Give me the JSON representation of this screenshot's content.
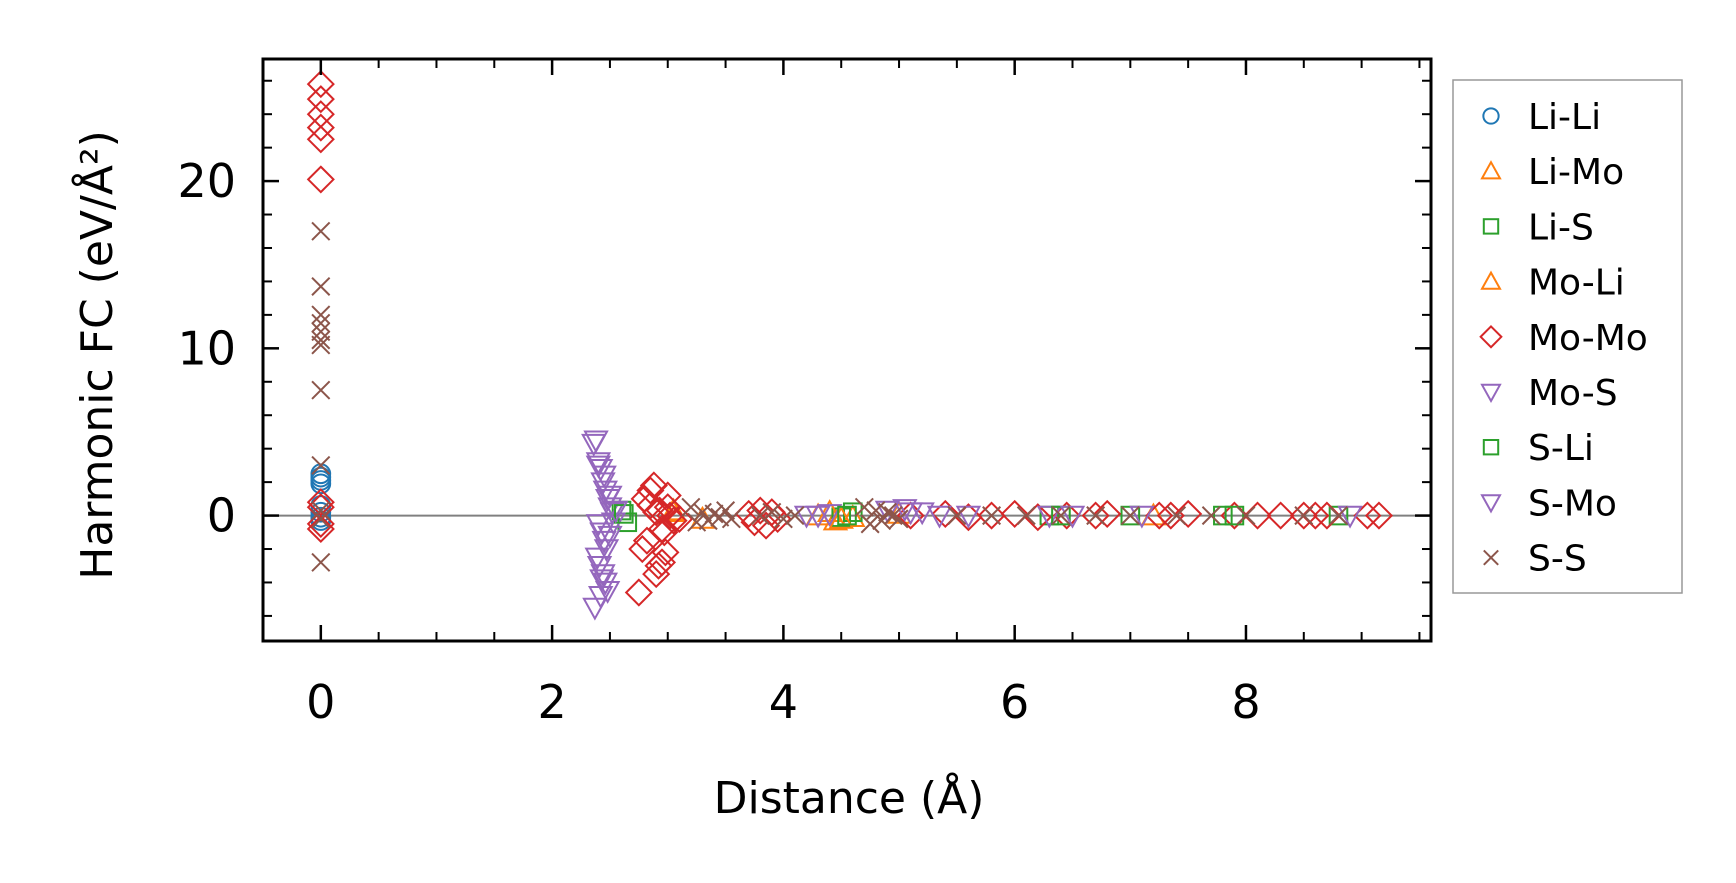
{
  "chart_data": {
    "type": "scatter",
    "title": "",
    "xlabel": "Distance (Å)",
    "ylabel": "Harmonic FC (eV/Å²)",
    "xlim": [
      -0.5,
      9.6
    ],
    "ylim": [
      -7.5,
      27.3
    ],
    "xticks": [
      0,
      2,
      4,
      6,
      8
    ],
    "yticks": [
      0,
      10,
      20
    ],
    "grid": false,
    "legend_position": "outside-right",
    "zero_line": 0,
    "series": [
      {
        "name": "Li-Li",
        "marker": "circle",
        "color": "#1f77b4",
        "x": [
          0,
          0,
          0,
          0,
          0,
          0,
          0,
          0
        ],
        "y": [
          2.5,
          2.3,
          2.1,
          1.9,
          0.6,
          0.2,
          -0.1,
          -0.3
        ]
      },
      {
        "name": "Li-Mo",
        "marker": "triangle-up",
        "color": "#ff7f0e",
        "x": [
          3.05,
          3.3,
          4.3,
          4.45,
          4.6,
          5.0,
          7.2
        ],
        "y": [
          0.2,
          -0.2,
          0.0,
          -0.3,
          -0.1,
          0.1,
          0.0
        ]
      },
      {
        "name": "Li-S",
        "marker": "square",
        "color": "#2ca02c",
        "x": [
          2.6,
          2.65,
          4.5,
          4.6,
          6.3,
          7.0,
          7.8,
          8.8
        ],
        "y": [
          0.3,
          -0.4,
          -0.1,
          0.2,
          0.0,
          0.0,
          0.0,
          0.0
        ]
      },
      {
        "name": "Mo-Li",
        "marker": "triangle-up",
        "color": "#ff7f0e",
        "x": [
          3.05,
          4.4,
          4.5
        ],
        "y": [
          0.3,
          0.2,
          -0.2
        ]
      },
      {
        "name": "Mo-Mo",
        "marker": "diamond",
        "color": "#d62728",
        "x": [
          0,
          0,
          0,
          0,
          0,
          0,
          0,
          0,
          0,
          0,
          2.78,
          2.8,
          2.85,
          2.88,
          2.9,
          2.92,
          2.95,
          2.98,
          3.0,
          3.05,
          2.75,
          2.9,
          2.95,
          3.0,
          3.1,
          2.85,
          2.82,
          3.02,
          2.97,
          2.93,
          3.7,
          3.75,
          3.8,
          3.85,
          3.9,
          3.95,
          5.1,
          5.4,
          5.6,
          5.8,
          6.0,
          6.2,
          6.45,
          6.7,
          6.8,
          7.25,
          7.35,
          7.5,
          7.9,
          8.1,
          8.3,
          8.5,
          8.6,
          8.7,
          9.05,
          9.15
        ],
        "y": [
          25.8,
          24.9,
          24.0,
          23.2,
          22.5,
          20.1,
          0.8,
          0.5,
          -0.5,
          -0.8,
          -2.0,
          1.0,
          1.5,
          1.8,
          -3.5,
          -3.0,
          -2.8,
          -2.2,
          0.5,
          -0.3,
          -4.6,
          0.2,
          -0.8,
          1.2,
          -0.2,
          0.6,
          -1.5,
          0.0,
          -1.0,
          0.3,
          0.1,
          -0.4,
          0.3,
          -0.6,
          0.2,
          -0.2,
          0.0,
          0.1,
          -0.1,
          0.0,
          0.1,
          -0.1,
          0.0,
          0.0,
          0.1,
          0.0,
          0.0,
          0.1,
          0.0,
          0.0,
          0.0,
          0.0,
          0.0,
          0.0,
          0.0,
          0.0
        ]
      },
      {
        "name": "Mo-S",
        "marker": "triangle-down",
        "color": "#9467bd",
        "x": [
          2.38,
          2.4,
          2.42,
          2.44,
          2.46,
          2.48,
          2.5,
          2.52,
          2.4,
          2.43,
          2.45,
          2.47,
          2.39,
          2.41,
          2.44,
          2.5,
          2.53,
          2.46,
          2.37,
          2.42,
          4.2,
          4.4,
          4.9,
          5.1,
          5.35,
          6.3,
          7.1,
          8.9
        ],
        "y": [
          4.5,
          3.2,
          2.8,
          2.0,
          1.5,
          1.0,
          0.5,
          0.2,
          -0.5,
          -1.0,
          -1.5,
          -2.0,
          -2.5,
          -3.0,
          -3.5,
          -1.2,
          -0.4,
          -4.0,
          -5.5,
          -4.8,
          0.0,
          0.1,
          0.3,
          0.2,
          0.0,
          0.0,
          0.0,
          0.0
        ]
      },
      {
        "name": "S-Li",
        "marker": "square",
        "color": "#2ca02c",
        "x": [
          2.62,
          4.55,
          6.4,
          7.9
        ],
        "y": [
          0.1,
          0.0,
          0.0,
          0.0
        ]
      },
      {
        "name": "S-Mo",
        "marker": "triangle-down",
        "color": "#9467bd",
        "x": [
          2.36,
          2.4,
          2.45,
          2.5,
          2.55,
          2.43,
          2.48,
          4.3,
          5.05,
          5.2,
          5.6,
          6.5
        ],
        "y": [
          4.3,
          3.0,
          2.4,
          1.2,
          0.3,
          -3.8,
          -4.5,
          0.0,
          0.4,
          0.2,
          0.0,
          0.0
        ]
      },
      {
        "name": "S-S",
        "marker": "x",
        "color": "#8c564b",
        "x": [
          0,
          0,
          0,
          0,
          0,
          0,
          0,
          0,
          0,
          0,
          0,
          0,
          3.2,
          3.25,
          3.3,
          3.35,
          3.4,
          3.45,
          3.5,
          3.55,
          3.8,
          3.9,
          4.0,
          4.1,
          4.7,
          4.75,
          4.8,
          4.85,
          4.9,
          4.95,
          5.0,
          5.5,
          5.8,
          6.1,
          6.4,
          6.7,
          7.0,
          7.4,
          7.7,
          8.0,
          8.5,
          8.8
        ],
        "y": [
          17.0,
          13.7,
          12.0,
          11.5,
          11.0,
          10.5,
          10.2,
          7.5,
          3.0,
          0.3,
          -0.2,
          -2.8,
          0.5,
          -0.4,
          0.2,
          -0.3,
          0.1,
          -0.1,
          0.3,
          -0.2,
          0.0,
          0.2,
          -0.2,
          0.0,
          0.5,
          -0.5,
          0.3,
          -0.3,
          0.2,
          0.0,
          -0.2,
          0.0,
          0.0,
          0.0,
          0.0,
          0.0,
          0.0,
          0.0,
          0.0,
          0.0,
          0.0,
          0.0
        ]
      }
    ]
  }
}
